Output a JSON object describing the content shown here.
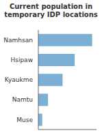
{
  "chart_data": {
    "type": "bar",
    "title": "Current population in temporary IDP locations",
    "orientation": "horizontal",
    "categories": [
      "Namhsan",
      "Hsipaw",
      "Kyaukme",
      "Namtu",
      "Muse"
    ],
    "values": [
      11100,
      7500,
      5000,
      2000,
      800
    ],
    "color": "#7bafd4",
    "xlim": [
      0,
      12000
    ],
    "grid": false,
    "tick_labels": "y"
  }
}
